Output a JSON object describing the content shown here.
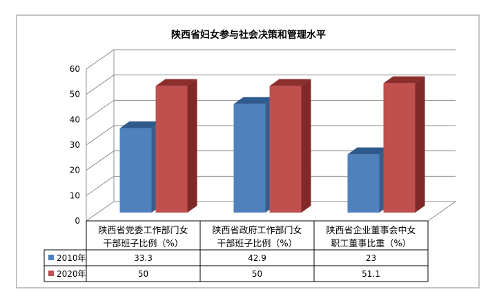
{
  "chart_data": {
    "type": "bar",
    "title": "陕西省妇女参与社会决策和管理水平",
    "categories": [
      [
        "陕西省党委工作部门女",
        "干部班子比例（%）"
      ],
      [
        "陕西省政府工作部门女",
        "干部班子比例（%）"
      ],
      [
        "陕西省企业董事会中女",
        "职工董事比重（%）"
      ]
    ],
    "series": [
      {
        "name": "2010年",
        "values": [
          33.3,
          42.9,
          23
        ],
        "value_labels": [
          "33.3",
          "42.9",
          "23"
        ],
        "color": "#4F81BD",
        "top_color": "#2E5A8C",
        "side_color": "#385D8A"
      },
      {
        "name": "2020年",
        "values": [
          50,
          50,
          51.1
        ],
        "value_labels": [
          "50",
          "50",
          "51.1"
        ],
        "color": "#C0504D",
        "top_color": "#8C2E2B",
        "side_color": "#7F2A28"
      }
    ],
    "ylim": [
      0,
      60
    ],
    "yticks": [
      0,
      10,
      20,
      30,
      40,
      50,
      60
    ],
    "grid": true,
    "legend": "data-table",
    "border_color": "#888888",
    "grid_color": "#8C8C8C"
  }
}
